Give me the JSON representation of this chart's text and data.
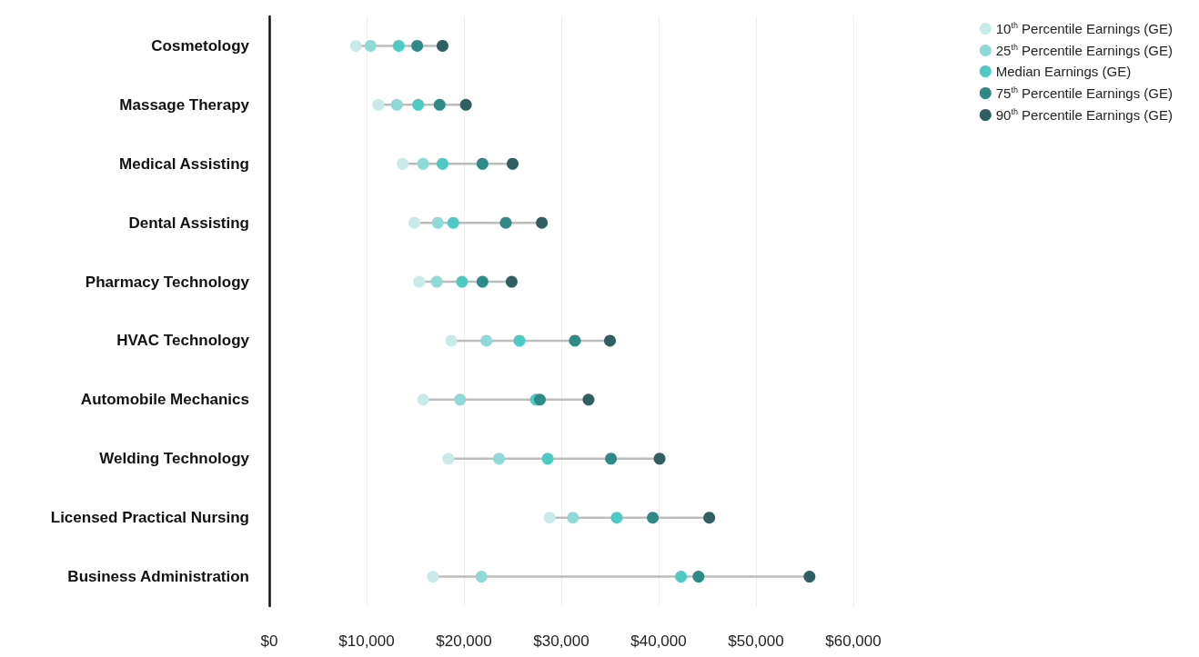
{
  "chart_data": {
    "type": "scatter",
    "orientation": "horizontal",
    "marker": "circle",
    "grid": "x",
    "legend": "top right",
    "categories": [
      "Cosmetology",
      "Massage Therapy",
      "Medical Assisting",
      "Dental Assisting",
      "Pharmacy Technology",
      "HVAC Technology",
      "Automobile Mechanics",
      "Welding Technology",
      "Licensed Practical Nursing",
      "Business Administration"
    ],
    "xlim": [
      0,
      60000
    ],
    "xticks": [
      {
        "value": 0,
        "label": "$0"
      },
      {
        "value": 10000,
        "label": "$10,000"
      },
      {
        "value": 20000,
        "label": "$20,000"
      },
      {
        "value": 30000,
        "label": "$30,000"
      },
      {
        "value": 40000,
        "label": "$40,000"
      },
      {
        "value": 50000,
        "label": "$50,000"
      },
      {
        "value": 60000,
        "label": "$60,000"
      }
    ],
    "series": [
      {
        "name": "10$^{th}$ Percentile Earnings (GE)",
        "color": "#c8ebea",
        "values": [
          8900,
          11200,
          13700,
          14900,
          15400,
          18700,
          15800,
          18400,
          28800,
          16800
        ]
      },
      {
        "name": "25$^{th}$ Percentile Earnings (GE)",
        "color": "#8fdad6",
        "values": [
          10400,
          13100,
          15800,
          17300,
          17200,
          22300,
          19600,
          23600,
          31200,
          21800
        ]
      },
      {
        "name": "Median Earnings (GE)",
        "color": "#4ecac4",
        "values": [
          13300,
          15300,
          17800,
          18900,
          19800,
          25700,
          27400,
          28600,
          35700,
          42300
        ]
      },
      {
        "name": "75$^{th}$ Percentile Earnings (GE)",
        "color": "#2e8a86",
        "values": [
          15200,
          17500,
          21900,
          24300,
          21900,
          31400,
          27800,
          35100,
          39400,
          44100
        ]
      },
      {
        "name": "90$^{th}$ Percentile Earnings (GE)",
        "color": "#2f5f60",
        "values": [
          17800,
          20200,
          25000,
          28000,
          24900,
          35000,
          32800,
          40100,
          45200,
          55500
        ]
      }
    ]
  }
}
